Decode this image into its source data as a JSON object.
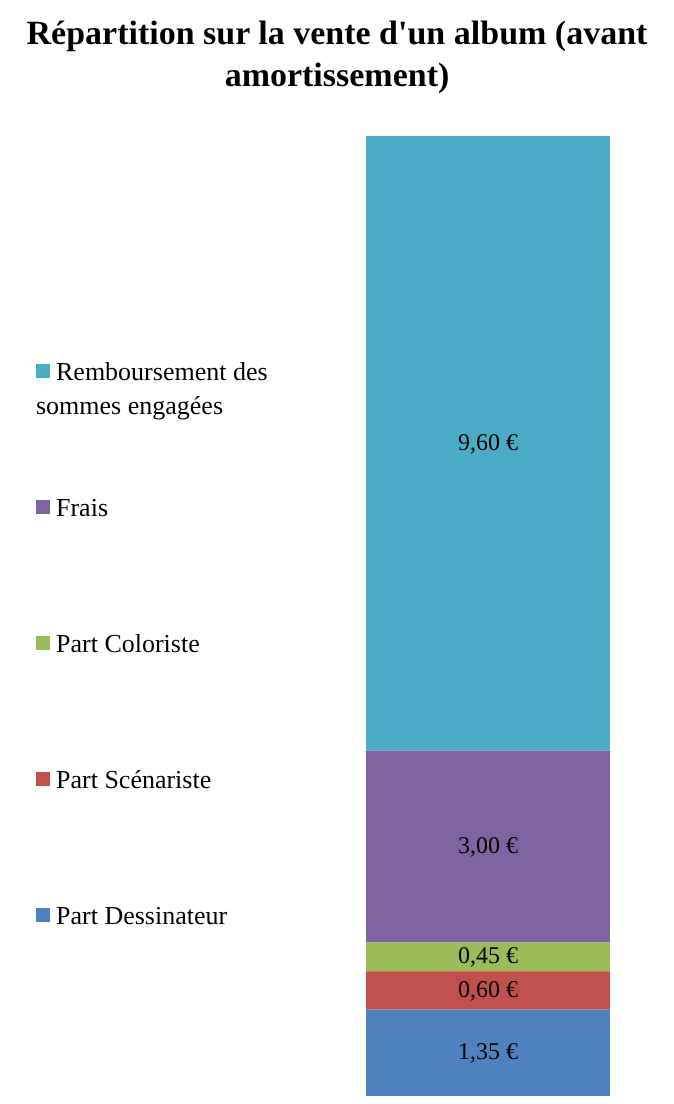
{
  "chart_data": {
    "type": "bar",
    "stacked": true,
    "title": "Répartition sur la vente d'un album (avant amortissement)",
    "categories": [
      null
    ],
    "legend": "left",
    "series": [
      {
        "name": "Part Dessinateur",
        "color": "#4f81bd",
        "values": [
          1.35
        ],
        "value_labels": [
          "1,35 €"
        ]
      },
      {
        "name": "Part Scénariste",
        "color": "#c0504d",
        "values": [
          0.6
        ],
        "value_labels": [
          "0,60 €"
        ]
      },
      {
        "name": "Part Coloriste",
        "color": "#9bbb59",
        "values": [
          0.45
        ],
        "value_labels": [
          "0,45 €"
        ]
      },
      {
        "name": "Frais",
        "color": "#8064a2",
        "values": [
          3.0
        ],
        "value_labels": [
          "3,00 €"
        ]
      },
      {
        "name": "Remboursement des sommes engagées",
        "color": "#4bacc6",
        "values": [
          9.6
        ],
        "value_labels": [
          "9,60 €"
        ]
      }
    ]
  }
}
